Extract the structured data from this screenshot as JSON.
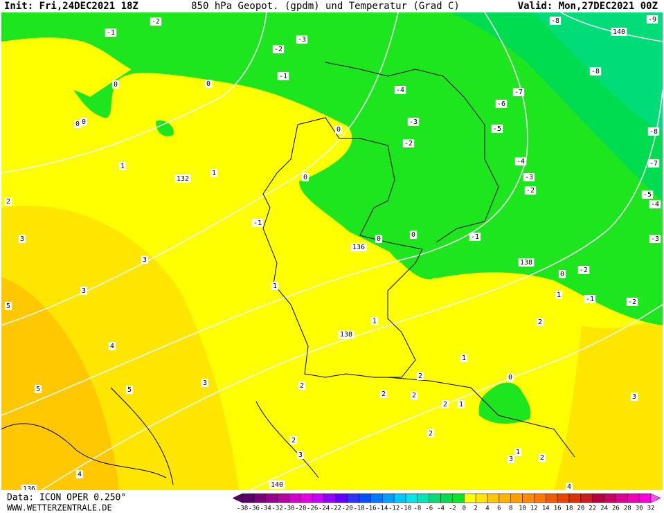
{
  "header": {
    "init": "Init: Fri,24DEC2021 18Z",
    "title": "850 hPa Geopot. (gpdm) und Temperatur (Grad C)",
    "valid": "Valid: Mon,27DEC2021 00Z"
  },
  "footer": {
    "data": "Data: ICON OPER 0.250°",
    "site": "WWW.WETTERZENTRALE.DE"
  },
  "legend": {
    "values": [
      -38,
      -36,
      -34,
      -32,
      -30,
      -28,
      -26,
      -24,
      -22,
      -20,
      -18,
      -16,
      -14,
      -12,
      -10,
      -8,
      -6,
      -4,
      -2,
      0,
      2,
      4,
      6,
      8,
      10,
      12,
      14,
      16,
      18,
      20,
      22,
      24,
      26,
      28,
      30,
      32
    ],
    "colors": [
      "#5a0064",
      "#780078",
      "#96008c",
      "#b400a0",
      "#d200c8",
      "#e600e6",
      "#c800ff",
      "#9600ff",
      "#6400ff",
      "#3232ff",
      "#0050ff",
      "#0078ff",
      "#00a0ff",
      "#00c8ff",
      "#00e6e6",
      "#00e6b4",
      "#00dc78",
      "#00dc50",
      "#00e628",
      "#ffff00",
      "#ffe600",
      "#ffc800",
      "#ffb400",
      "#ffa000",
      "#ff8c00",
      "#ff7800",
      "#f05a00",
      "#e64600",
      "#dc3200",
      "#c81e1e",
      "#b4003c",
      "#c80064",
      "#dc0096",
      "#f000b4",
      "#ff00dc",
      "#ff50ff"
    ]
  },
  "contour_labels": {
    "temperature": [
      -1,
      -2,
      -2,
      -3,
      -1,
      0,
      0,
      0,
      0,
      1,
      1,
      2,
      3,
      3,
      3,
      5,
      4,
      5,
      5,
      3,
      4,
      2,
      0,
      0,
      -1,
      1,
      1,
      0,
      0,
      -1,
      -4,
      -3,
      -2,
      -5,
      -6,
      -7,
      -8,
      -8,
      -9,
      -8,
      -7,
      -5,
      -4,
      -3,
      -4,
      -3,
      -2,
      -2,
      0,
      1,
      -1,
      -2,
      2,
      1,
      2,
      2,
      2,
      2,
      1,
      0,
      3,
      2,
      2,
      3,
      1,
      2,
      3,
      4
    ],
    "geopotential": [
      132,
      136,
      138,
      138,
      140,
      140,
      136
    ]
  }
}
